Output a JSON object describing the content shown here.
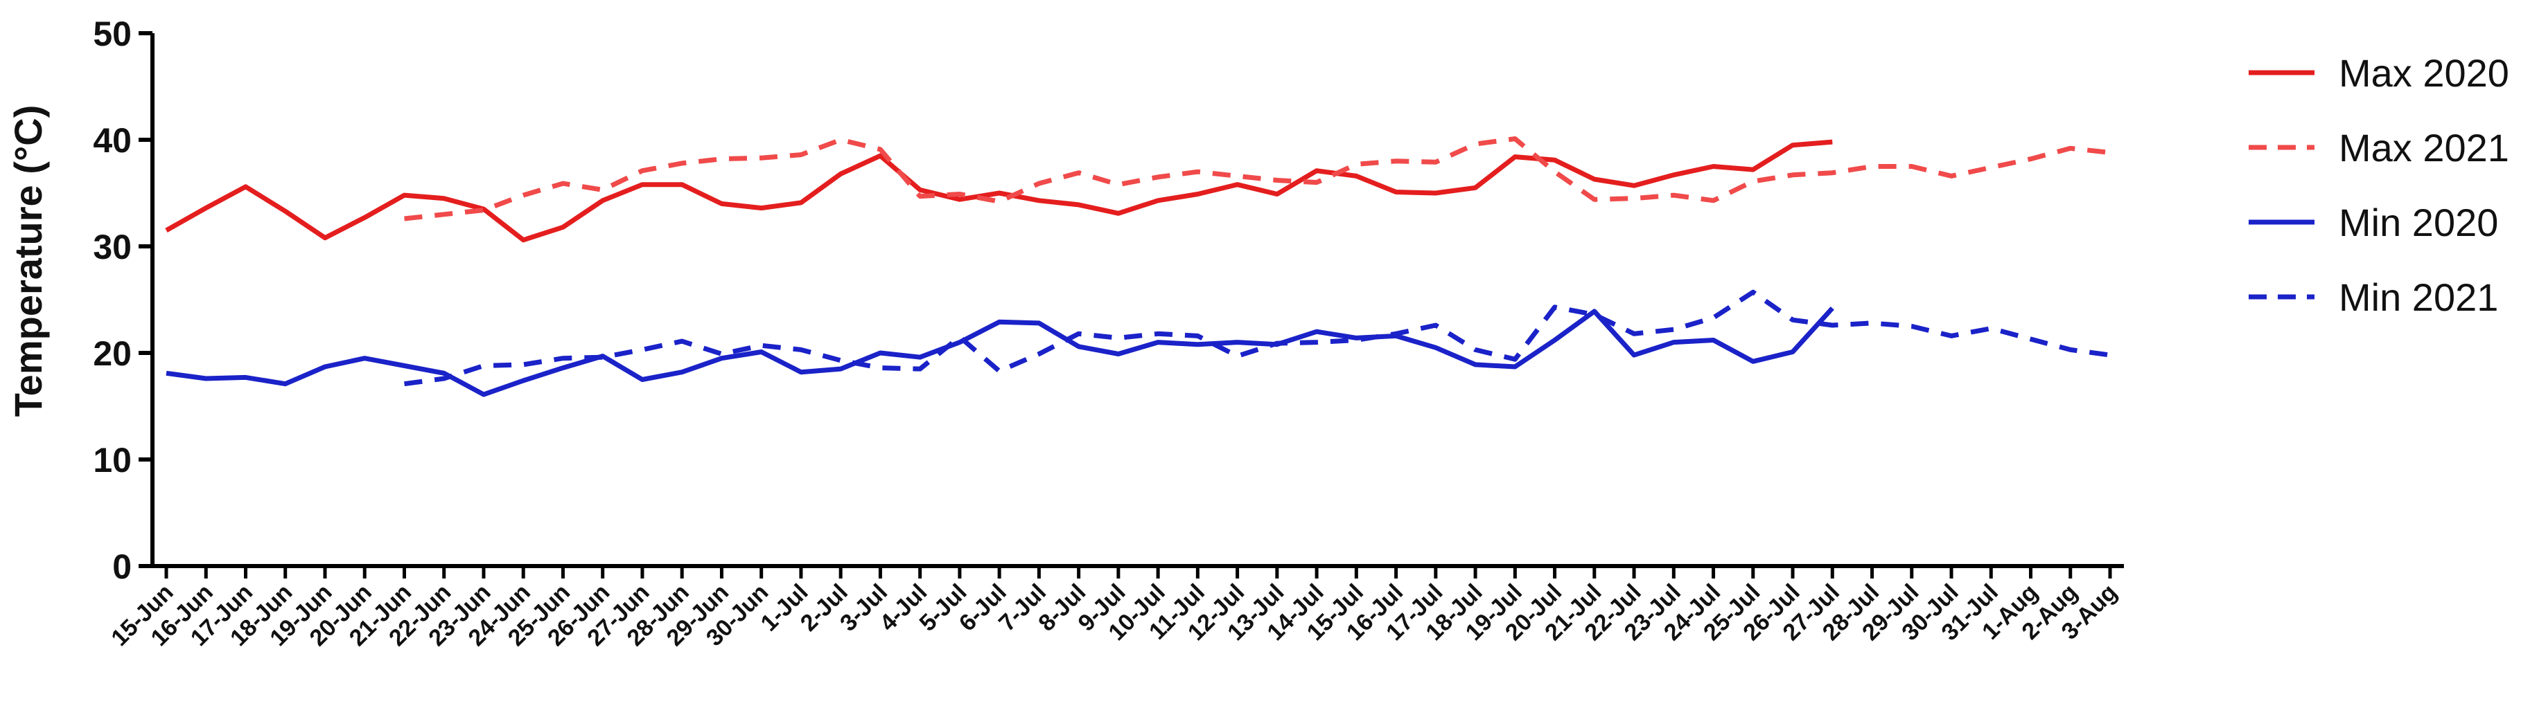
{
  "chart_data": {
    "type": "line",
    "title": "",
    "xlabel": "",
    "ylabel": "Temperature (°C)",
    "ylim": [
      0,
      50
    ],
    "yticks": [
      "0",
      "10",
      "20",
      "30",
      "40",
      "50"
    ],
    "grid": false,
    "legend_position": "right",
    "categories": [
      "15-Jun",
      "16-Jun",
      "17-Jun",
      "18-Jun",
      "19-Jun",
      "20-Jun",
      "21-Jun",
      "22-Jun",
      "23-Jun",
      "24-Jun",
      "25-Jun",
      "26-Jun",
      "27-Jun",
      "28-Jun",
      "29-Jun",
      "30-Jun",
      "1-Jul",
      "2-Jul",
      "3-Jul",
      "4-Jul",
      "5-Jul",
      "6-Jul",
      "7-Jul",
      "8-Jul",
      "9-Jul",
      "10-Jul",
      "11-Jul",
      "12-Jul",
      "13-Jul",
      "14-Jul",
      "15-Jul",
      "16-Jul",
      "17-Jul",
      "18-Jul",
      "19-Jul",
      "20-Jul",
      "21-Jul",
      "22-Jul",
      "23-Jul",
      "24-Jul",
      "25-Jul",
      "26-Jul",
      "27-Jul",
      "28-Jul",
      "29-Jul",
      "30-Jul",
      "31-Jul",
      "1-Aug",
      "2-Aug",
      "3-Aug"
    ],
    "series": [
      {
        "name": "Max 2020",
        "color": "#e41e1e",
        "dashed": false,
        "values": [
          31.5,
          33.6,
          35.6,
          33.3,
          30.8,
          32.7,
          34.8,
          34.5,
          33.5,
          30.6,
          31.8,
          34.3,
          35.8,
          35.8,
          34.0,
          33.6,
          34.1,
          36.8,
          38.5,
          35.3,
          34.4,
          35.0,
          34.3,
          33.9,
          33.1,
          34.3,
          34.9,
          35.8,
          34.9,
          37.1,
          36.6,
          35.1,
          35.0,
          35.5,
          38.4,
          38.1,
          36.3,
          35.7,
          36.7,
          37.5,
          37.2,
          39.5,
          39.8,
          null,
          null,
          null,
          null,
          null,
          null,
          null
        ]
      },
      {
        "name": "Max 2021",
        "color": "#f04a4a",
        "dashed": true,
        "values": [
          null,
          null,
          null,
          null,
          null,
          null,
          32.6,
          33.0,
          33.4,
          34.8,
          35.9,
          35.3,
          37.1,
          37.8,
          38.2,
          38.3,
          38.6,
          40.0,
          39.1,
          34.7,
          34.9,
          34.2,
          35.9,
          36.9,
          35.8,
          36.5,
          37.0,
          36.6,
          36.2,
          36.0,
          37.7,
          38.0,
          37.9,
          39.6,
          40.1,
          37.0,
          34.4,
          34.5,
          34.8,
          34.3,
          36.1,
          36.7,
          36.9,
          37.5,
          37.5,
          36.6,
          37.4,
          38.2,
          39.2,
          38.8
        ]
      },
      {
        "name": "Min 2020",
        "color": "#1a22c8",
        "dashed": false,
        "values": [
          18.1,
          17.6,
          17.7,
          17.1,
          18.7,
          19.5,
          18.8,
          18.1,
          16.1,
          17.4,
          18.6,
          19.7,
          17.5,
          18.2,
          19.5,
          20.1,
          18.2,
          18.5,
          20.0,
          19.6,
          21.0,
          22.9,
          22.8,
          20.6,
          19.9,
          21.0,
          20.8,
          21.0,
          20.8,
          22.0,
          21.4,
          21.6,
          20.5,
          18.9,
          18.7,
          21.2,
          23.9,
          19.8,
          21.0,
          21.2,
          19.2,
          20.1,
          24.2,
          null,
          null,
          null,
          null,
          null,
          null,
          null
        ]
      },
      {
        "name": "Min 2021",
        "color": "#1a22c8",
        "dashed": true,
        "values": [
          null,
          null,
          null,
          null,
          null,
          null,
          17.1,
          17.6,
          18.8,
          18.9,
          19.5,
          19.6,
          20.3,
          21.1,
          19.9,
          20.7,
          20.3,
          19.3,
          18.6,
          18.5,
          21.5,
          18.3,
          19.9,
          21.8,
          21.4,
          21.8,
          21.6,
          19.7,
          20.9,
          21.0,
          21.2,
          21.8,
          22.6,
          20.3,
          19.4,
          24.3,
          23.6,
          21.8,
          22.2,
          23.3,
          25.7,
          23.1,
          22.6,
          22.8,
          22.5,
          21.6,
          22.3,
          21.3,
          20.3,
          19.8
        ]
      }
    ]
  }
}
